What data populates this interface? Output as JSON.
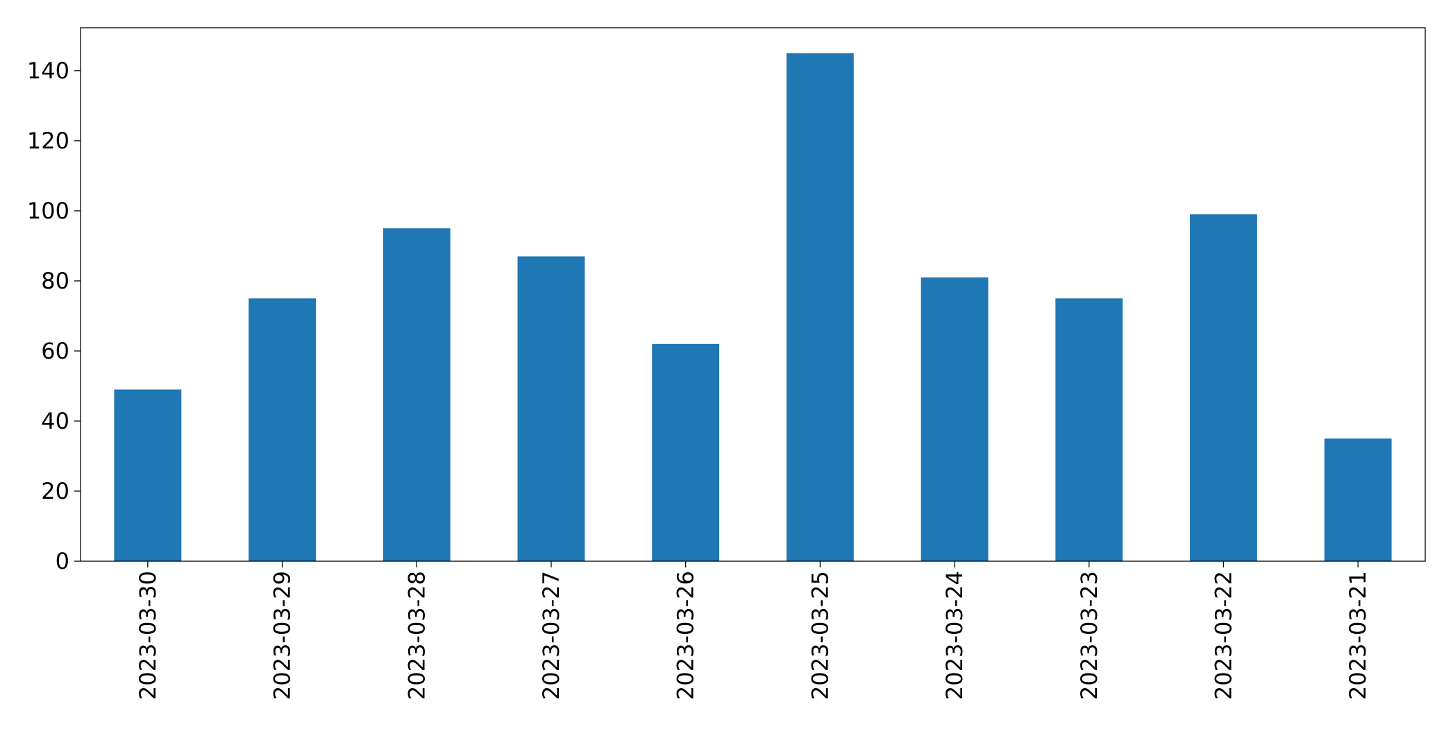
{
  "chart_data": {
    "type": "bar",
    "categories": [
      "2023-03-30",
      "2023-03-29",
      "2023-03-28",
      "2023-03-27",
      "2023-03-26",
      "2023-03-25",
      "2023-03-24",
      "2023-03-23",
      "2023-03-22",
      "2023-03-21"
    ],
    "values": [
      49,
      75,
      95,
      87,
      62,
      145,
      81,
      75,
      99,
      35
    ],
    "title": "",
    "xlabel": "",
    "ylabel": "",
    "ylim": [
      0,
      152.25
    ],
    "yticks": [
      0,
      20,
      40,
      60,
      80,
      100,
      120,
      140
    ],
    "grid": false,
    "bar_color": "#1f77b4"
  }
}
